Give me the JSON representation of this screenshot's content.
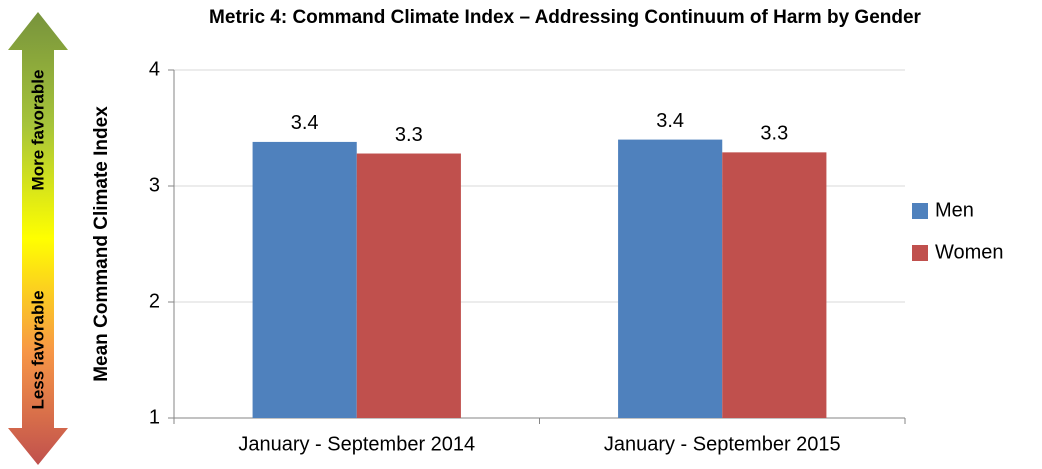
{
  "chart_data": {
    "type": "bar",
    "title": "Metric 4: Command Climate Index – Addressing Continuum of Harm by Gender",
    "y_label": "Mean Command Climate Index",
    "annotations": [
      "More favorable",
      "Less favorable"
    ],
    "categories": [
      "January - September 2014",
      "January - September 2015"
    ],
    "series": [
      {
        "name": "Men",
        "color": "#4f81bd",
        "values": [
          3.38,
          3.4
        ],
        "value_labels": [
          "3.4",
          "3.4"
        ]
      },
      {
        "name": "Women",
        "color": "#c0504d",
        "values": [
          3.28,
          3.29
        ],
        "value_labels": [
          "3.3",
          "3.3"
        ]
      }
    ],
    "ylim": [
      1,
      4
    ],
    "yticks": [
      1,
      2,
      3,
      4
    ],
    "grid": true,
    "legend": "right"
  }
}
